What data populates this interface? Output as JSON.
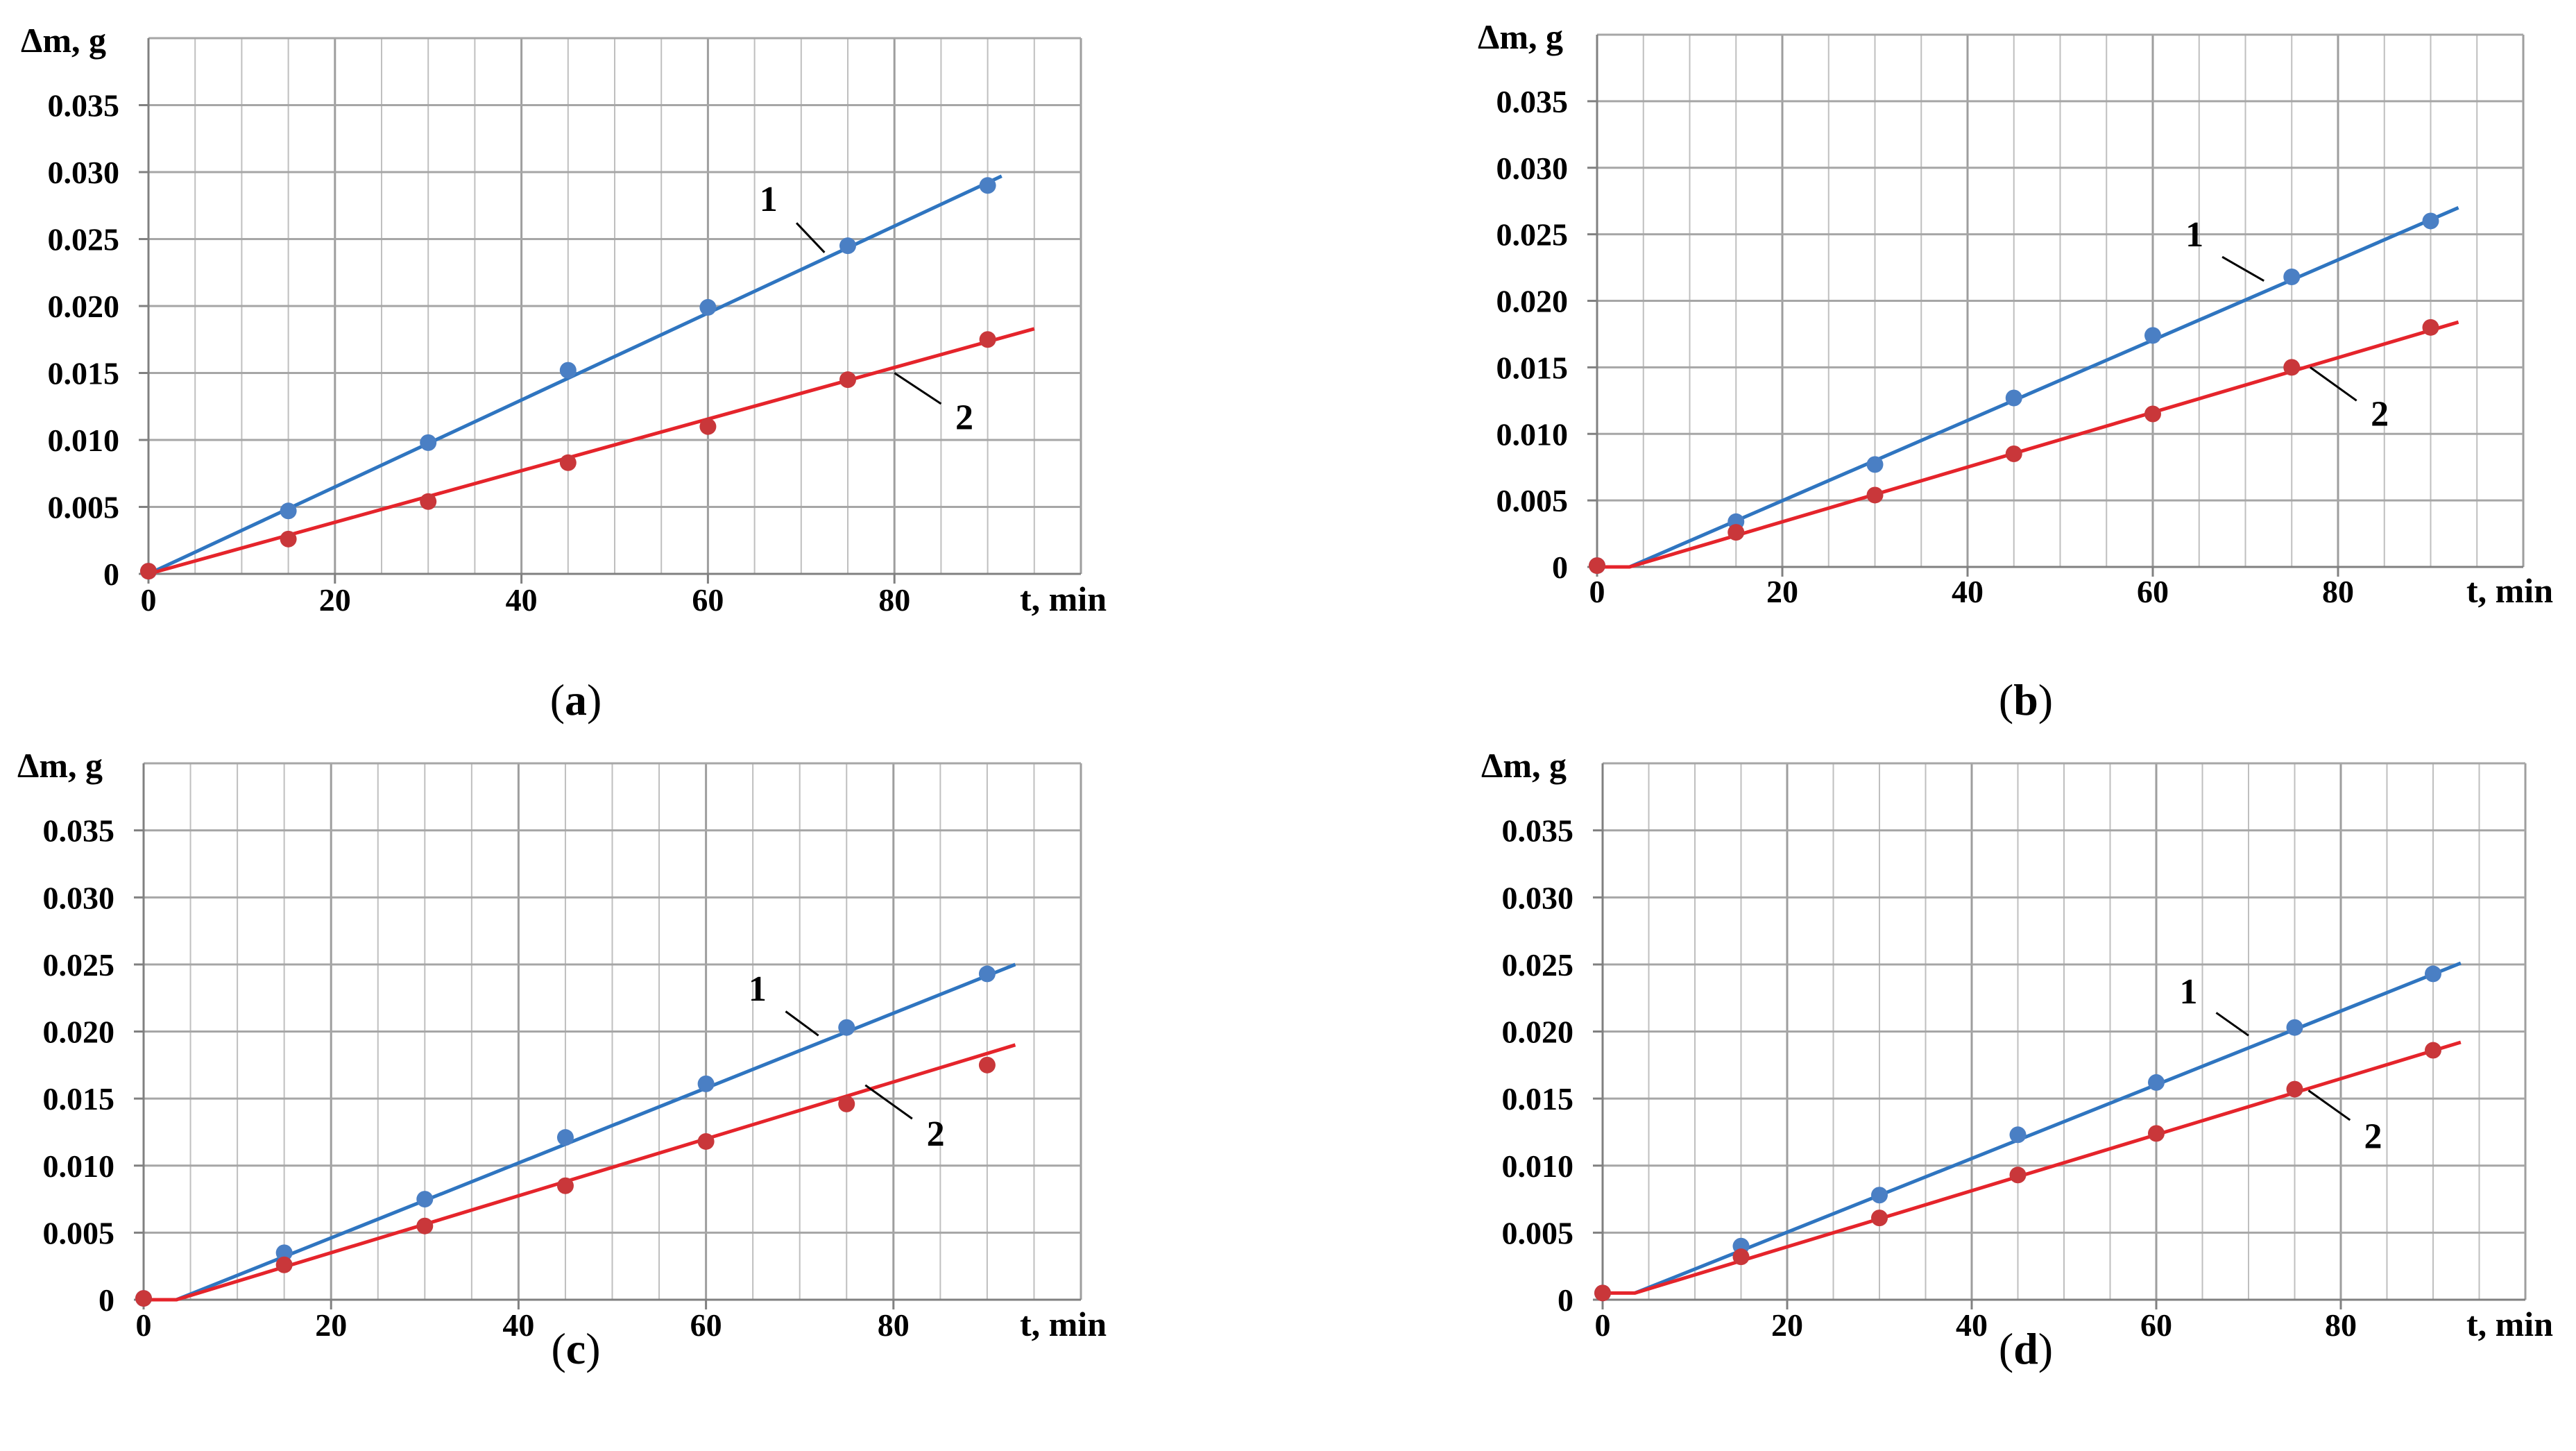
{
  "figure": {
    "type": "multi-panel",
    "panel_count": 4
  },
  "colors": {
    "series_1": "#2F75C0",
    "series_1_marker": "#4A7FC4",
    "series_2": "#E5242B",
    "series_2_marker": "#C9373A",
    "grid": "#BFBFBF",
    "axis": "#808080",
    "text": "#000000"
  },
  "chart_data": [
    {
      "type": "scatter",
      "panel_id": "a",
      "panel_label": {
        "open": "(",
        "letter": "a",
        "close": ")"
      },
      "xlabel": "t, min",
      "ylabel": "Δm, g",
      "xlim": [
        0,
        100
      ],
      "ylim": [
        0,
        0.04
      ],
      "xticks": [
        0,
        20,
        40,
        60,
        80
      ],
      "xtick_labels": [
        "0",
        "20",
        "40",
        "60",
        "80"
      ],
      "yticks": [
        0,
        0.005,
        0.01,
        0.015,
        0.02,
        0.025,
        0.03,
        0.035
      ],
      "ytick_labels": [
        "0",
        "0.005",
        "0.010",
        "0.015",
        "0.020",
        "0.025",
        "0.030",
        "0.035"
      ],
      "grid": {
        "x_minor_step": 5,
        "y_step": 0.005
      },
      "series": [
        {
          "name": "1",
          "color_key": "series_1",
          "x": [
            0,
            15,
            30,
            45,
            60,
            75,
            90
          ],
          "y": [
            0.0002,
            0.0047,
            0.0098,
            0.0152,
            0.0199,
            0.0245,
            0.029
          ],
          "fit": [
            [
              0,
              0
            ],
            [
              91.5,
              0.0297
            ]
          ],
          "label_text": "1",
          "label_at": [
            66.5,
            0.0271
          ],
          "leader": [
            [
              69.5,
              0.0262
            ],
            [
              72.5,
              0.024
            ]
          ]
        },
        {
          "name": "2",
          "color_key": "series_2",
          "x": [
            0,
            15,
            30,
            45,
            60,
            75,
            90
          ],
          "y": [
            0.0002,
            0.0026,
            0.0054,
            0.0083,
            0.011,
            0.0145,
            0.0175
          ],
          "fit": [
            [
              0,
              0
            ],
            [
              95,
              0.0183
            ]
          ],
          "label_text": "2",
          "label_at": [
            87.5,
            0.0108
          ],
          "leader": [
            [
              85,
              0.0127
            ],
            [
              80,
              0.015
            ]
          ]
        }
      ]
    },
    {
      "type": "scatter",
      "panel_id": "b",
      "panel_label": {
        "open": "(",
        "letter": "b",
        "close": ")"
      },
      "xlabel": "t, min",
      "ylabel": "Δm, g",
      "xlim": [
        0,
        100
      ],
      "ylim": [
        0,
        0.04
      ],
      "xticks": [
        0,
        20,
        40,
        60,
        80
      ],
      "xtick_labels": [
        "0",
        "20",
        "40",
        "60",
        "80"
      ],
      "yticks": [
        0,
        0.005,
        0.01,
        0.015,
        0.02,
        0.025,
        0.03,
        0.035
      ],
      "ytick_labels": [
        "0",
        "0.005",
        "0.010",
        "0.015",
        "0.020",
        "0.025",
        "0.030",
        "0.035"
      ],
      "grid": {
        "x_minor_step": 5,
        "y_step": 0.005
      },
      "series": [
        {
          "name": "1",
          "color_key": "series_1",
          "x": [
            0,
            15,
            30,
            45,
            60,
            75,
            90
          ],
          "y": [
            0.0001,
            0.0034,
            0.0077,
            0.0127,
            0.0174,
            0.0218,
            0.026
          ],
          "fit": [
            [
              3.5,
              0
            ],
            [
              93,
              0.027
            ]
          ],
          "label_text": "1",
          "label_at": [
            64.5,
            0.0241
          ],
          "leader": [
            [
              67.5,
              0.0233
            ],
            [
              72,
              0.0215
            ]
          ]
        },
        {
          "name": "2",
          "color_key": "series_2",
          "x": [
            0,
            15,
            30,
            45,
            60,
            75,
            90
          ],
          "y": [
            0.0001,
            0.0026,
            0.0054,
            0.0085,
            0.0115,
            0.015,
            0.018
          ],
          "fit": [
            [
              0,
              0
            ],
            [
              3.5,
              0
            ],
            [
              93,
              0.0184
            ]
          ],
          "label_text": "2",
          "label_at": [
            84.5,
            0.0106
          ],
          "leader": [
            [
              82,
              0.0125
            ],
            [
              77,
              0.015
            ]
          ]
        }
      ]
    },
    {
      "type": "scatter",
      "panel_id": "c",
      "panel_label": {
        "open": "(",
        "letter": "c",
        "close": ")"
      },
      "xlabel": "t, min",
      "ylabel": "Δm, g",
      "xlim": [
        0,
        100
      ],
      "ylim": [
        0,
        0.04
      ],
      "xticks": [
        0,
        20,
        40,
        60,
        80
      ],
      "xtick_labels": [
        "0",
        "20",
        "40",
        "60",
        "80"
      ],
      "yticks": [
        0,
        0.005,
        0.01,
        0.015,
        0.02,
        0.025,
        0.03,
        0.035
      ],
      "ytick_labels": [
        "0",
        "0.005",
        "0.010",
        "0.015",
        "0.020",
        "0.025",
        "0.030",
        "0.035"
      ],
      "grid": {
        "x_minor_step": 5,
        "y_step": 0.005
      },
      "series": [
        {
          "name": "1",
          "color_key": "series_1",
          "x": [
            0,
            15,
            30,
            45,
            60,
            75,
            90
          ],
          "y": [
            0.0001,
            0.0035,
            0.0075,
            0.0121,
            0.0161,
            0.0203,
            0.0243
          ],
          "fit": [
            [
              3.5,
              0
            ],
            [
              93,
              0.025
            ]
          ],
          "label_text": "1",
          "label_at": [
            65.5,
            0.0223
          ],
          "leader": [
            [
              68.5,
              0.0215
            ],
            [
              72,
              0.0197
            ]
          ]
        },
        {
          "name": "2",
          "color_key": "series_2",
          "x": [
            0,
            15,
            30,
            45,
            60,
            75,
            90
          ],
          "y": [
            0.0001,
            0.0026,
            0.0055,
            0.0085,
            0.0118,
            0.0146,
            0.0175
          ],
          "fit": [
            [
              0,
              0
            ],
            [
              3.5,
              0
            ],
            [
              93,
              0.019
            ]
          ],
          "label_text": "2",
          "label_at": [
            84.5,
            0.0115
          ],
          "leader": [
            [
              82,
              0.0135
            ],
            [
              77,
              0.016
            ]
          ]
        }
      ]
    },
    {
      "type": "scatter",
      "panel_id": "d",
      "panel_label": {
        "open": "(",
        "letter": "d",
        "close": ")"
      },
      "xlabel": "t, min",
      "ylabel": "Δm, g",
      "xlim": [
        0,
        100
      ],
      "ylim": [
        0,
        0.04
      ],
      "xticks": [
        0,
        20,
        40,
        60,
        80
      ],
      "xtick_labels": [
        "0",
        "20",
        "40",
        "60",
        "80"
      ],
      "yticks": [
        0,
        0.005,
        0.01,
        0.015,
        0.02,
        0.025,
        0.03,
        0.035
      ],
      "ytick_labels": [
        "0",
        "0.005",
        "0.010",
        "0.015",
        "0.020",
        "0.025",
        "0.030",
        "0.035"
      ],
      "grid": {
        "x_minor_step": 5,
        "y_step": 0.005
      },
      "series": [
        {
          "name": "1",
          "color_key": "series_1",
          "x": [
            0,
            15,
            30,
            45,
            60,
            75,
            90
          ],
          "y": [
            0.0005,
            0.004,
            0.0078,
            0.0123,
            0.0162,
            0.0203,
            0.0243
          ],
          "fit": [
            [
              3.5,
              0.0005
            ],
            [
              93,
              0.0251
            ]
          ],
          "label_text": "1",
          "label_at": [
            63.5,
            0.0221
          ],
          "leader": [
            [
              66.5,
              0.0214
            ],
            [
              70,
              0.0197
            ]
          ]
        },
        {
          "name": "2",
          "color_key": "series_2",
          "x": [
            0,
            15,
            30,
            45,
            60,
            75,
            90
          ],
          "y": [
            0.0005,
            0.0032,
            0.0061,
            0.0093,
            0.0124,
            0.0157,
            0.0186
          ],
          "fit": [
            [
              0,
              0.0005
            ],
            [
              3.5,
              0.0005
            ],
            [
              93,
              0.0192
            ]
          ],
          "label_text": "2",
          "label_at": [
            83.5,
            0.0113
          ],
          "leader": [
            [
              81,
              0.0134
            ],
            [
              76.5,
              0.0156
            ]
          ]
        }
      ]
    }
  ]
}
